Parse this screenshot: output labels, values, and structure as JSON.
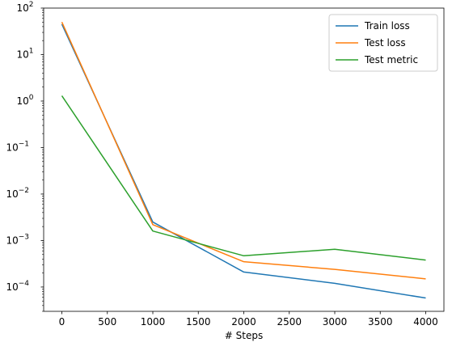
{
  "chart_data": {
    "type": "line",
    "title": "",
    "xlabel": "# Steps",
    "ylabel": "",
    "x": [
      0,
      1000,
      2000,
      3000,
      4000
    ],
    "xlim": [
      -200,
      4200
    ],
    "ylim": [
      3e-05,
      100
    ],
    "yscale": "log",
    "x_ticks": [
      0,
      500,
      1000,
      1500,
      2000,
      2500,
      3000,
      3500,
      4000
    ],
    "y_ticks": [
      {
        "value": 0.0001,
        "base": "10",
        "exp": "−4"
      },
      {
        "value": 0.001,
        "base": "10",
        "exp": "−3"
      },
      {
        "value": 0.01,
        "base": "10",
        "exp": "−2"
      },
      {
        "value": 0.1,
        "base": "10",
        "exp": "−1"
      },
      {
        "value": 1,
        "base": "10",
        "exp": "0"
      },
      {
        "value": 10,
        "base": "10",
        "exp": "1"
      },
      {
        "value": 100,
        "base": "10",
        "exp": "2"
      }
    ],
    "grid": false,
    "legend_position": "top-right",
    "series": [
      {
        "name": "Train loss",
        "color": "#1f77b4",
        "values": [
          45,
          0.0025,
          0.00021,
          0.00012,
          5.8e-05
        ]
      },
      {
        "name": "Test loss",
        "color": "#ff7f0e",
        "values": [
          50,
          0.0022,
          0.00035,
          0.00024,
          0.00015
        ]
      },
      {
        "name": "Test metric",
        "color": "#2ca02c",
        "values": [
          1.3,
          0.0016,
          0.00047,
          0.00065,
          0.00038
        ]
      }
    ]
  }
}
